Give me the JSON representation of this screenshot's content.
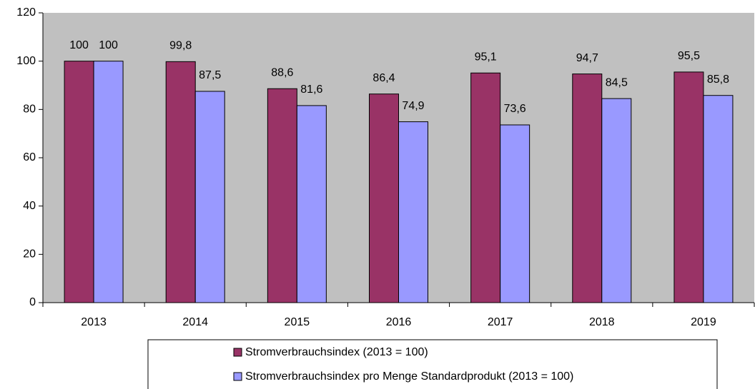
{
  "chart_data": {
    "type": "bar",
    "categories": [
      "2013",
      "2014",
      "2015",
      "2016",
      "2017",
      "2018",
      "2019"
    ],
    "series": [
      {
        "name": "Stromverbrauchsindex (2013 = 100)",
        "color": "#993366",
        "values": [
          100,
          99.8,
          88.6,
          86.4,
          95.1,
          94.7,
          95.5
        ],
        "value_labels": [
          "100",
          "99,8",
          "88,6",
          "86,4",
          "95,1",
          "94,7",
          "95,5"
        ]
      },
      {
        "name": "Stromverbrauchsindex pro Menge Standardprodukt (2013 = 100)",
        "color": "#9999ff",
        "values": [
          100,
          87.5,
          81.6,
          74.9,
          73.6,
          84.5,
          85.8
        ],
        "value_labels": [
          "100",
          "87,5",
          "81,6",
          "74,9",
          "73,6",
          "84,5",
          "85,8"
        ]
      }
    ],
    "ylim": [
      0,
      120
    ],
    "yticks": [
      0,
      20,
      40,
      60,
      80,
      100,
      120
    ],
    "grid": false,
    "legend": "bottom",
    "plot_background": "#c0c0c0"
  }
}
